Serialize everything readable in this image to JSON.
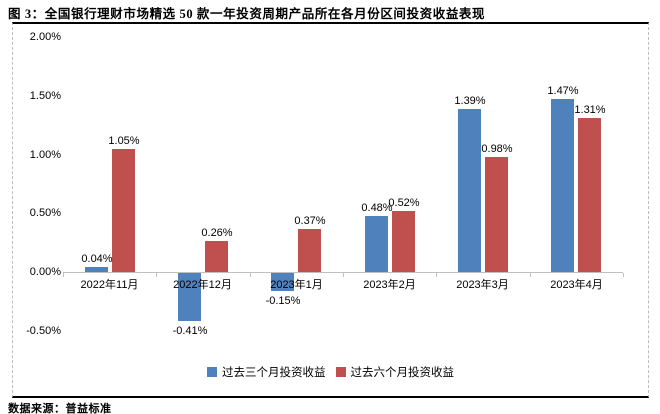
{
  "title": "图 3：全国银行理财市场精选 50 款一年投资周期产品所在各月份区间投资收益表现",
  "source_note": "数据来源：普益标准",
  "colors": {
    "series1": "#4F81BD",
    "series2": "#C0504D",
    "axis_line": "#C0C0C0",
    "frame_solid_border": "#000000",
    "frame_dashed_border": "#BDBDBD",
    "text": "#000000"
  },
  "chart_data": {
    "type": "bar",
    "title": "图 3：全国银行理财市场精选 50 款一年投资周期产品所在各月份区间投资收益表现",
    "categories": [
      "2022年11月",
      "2022年12月",
      "2023年1月",
      "2023年2月",
      "2023年3月",
      "2023年4月"
    ],
    "series": [
      {
        "name": "过去三个月投资收益",
        "color": "#4F81BD",
        "values": [
          0.04,
          -0.41,
          -0.15,
          0.48,
          1.39,
          1.47
        ]
      },
      {
        "name": "过去六个月投资收益",
        "color": "#C0504D",
        "values": [
          1.05,
          0.26,
          0.37,
          0.52,
          0.98,
          1.31
        ]
      }
    ],
    "data_labels": [
      [
        "0.04%",
        "-0.41%",
        "-0.15%",
        "0.48%",
        "1.39%",
        "1.47%"
      ],
      [
        "1.05%",
        "0.26%",
        "0.37%",
        "0.52%",
        "0.98%",
        "1.31%"
      ]
    ],
    "y_ticks": [
      "2.00%",
      "1.50%",
      "1.00%",
      "0.50%",
      "0.00%",
      "-0.50%"
    ],
    "y_tick_values": [
      2.0,
      1.5,
      1.0,
      0.5,
      0.0,
      -0.5
    ],
    "ylim": [
      -0.5,
      2.0
    ],
    "unit": "%",
    "grid": false,
    "legend_position": "bottom"
  }
}
